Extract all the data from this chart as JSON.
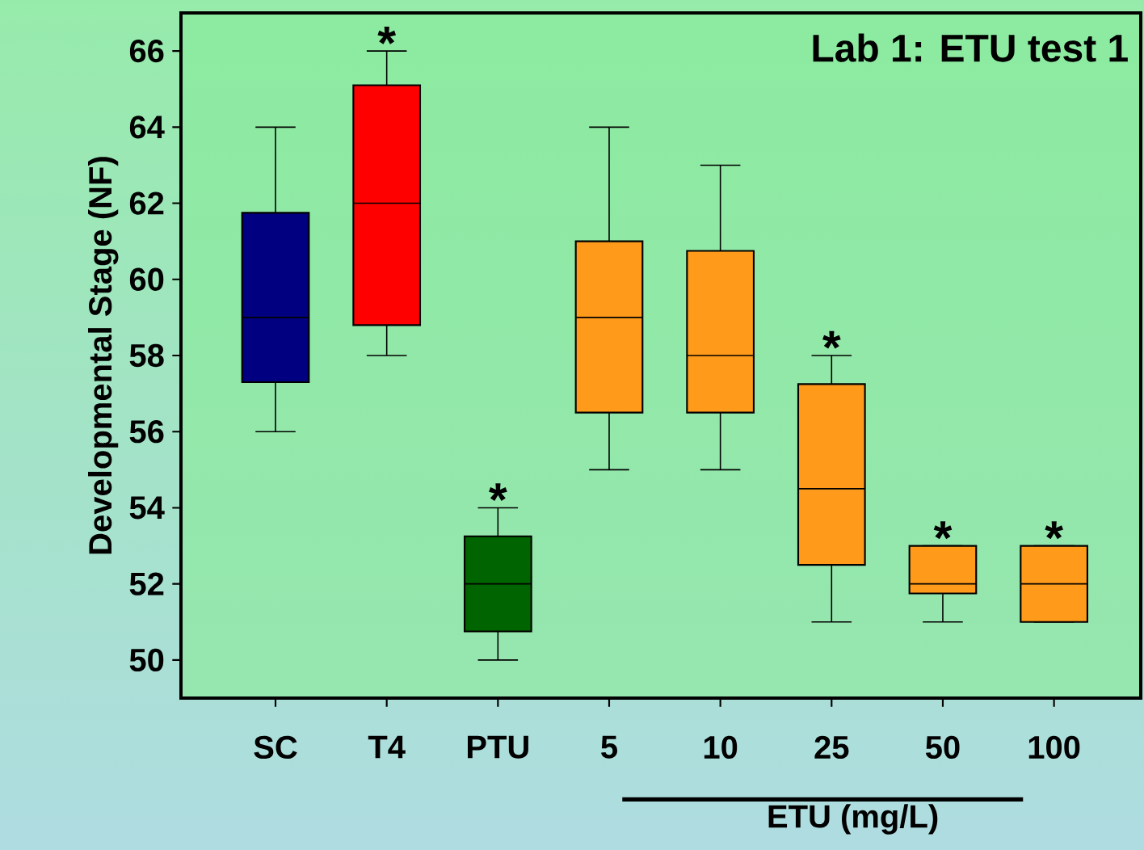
{
  "chart_data": {
    "type": "box",
    "title": "Lab 1:  ETU test 1",
    "ylabel": "Developmental Stage (NF)",
    "categories": [
      "SC",
      "T4",
      "PTU",
      "5",
      "10",
      "25",
      "50",
      "100"
    ],
    "boxes": [
      {
        "low": 56,
        "q1": 57.3,
        "median": 59,
        "q3": 61.75,
        "high": 64
      },
      {
        "low": 58,
        "q1": 58.8,
        "median": 62,
        "q3": 65.1,
        "high": 66
      },
      {
        "low": 50,
        "q1": 50.75,
        "median": 52,
        "q3": 53.25,
        "high": 54
      },
      {
        "low": 55,
        "q1": 56.5,
        "median": 59,
        "q3": 61,
        "high": 64
      },
      {
        "low": 55,
        "q1": 56.5,
        "median": 58,
        "q3": 60.75,
        "high": 63
      },
      {
        "low": 51,
        "q1": 52.5,
        "median": 54.5,
        "q3": 57.25,
        "high": 58
      },
      {
        "low": 51,
        "q1": 51.75,
        "median": 52,
        "q3": 53,
        "high": 53
      },
      {
        "low": 51,
        "q1": 51,
        "median": 52,
        "q3": 53,
        "high": 53
      }
    ],
    "colors": [
      "#000080",
      "#ff0000",
      "#006400",
      "#ff9a1a",
      "#ff9a1a",
      "#ff9a1a",
      "#ff9a1a",
      "#ff9a1a"
    ],
    "ylim": [
      49,
      67
    ],
    "yticks": [
      50,
      52,
      54,
      56,
      58,
      60,
      62,
      64,
      66
    ],
    "value_labels": [
      null,
      "*",
      "*",
      null,
      null,
      "*",
      "*",
      "*"
    ],
    "annotations": [
      "ETU (mg/L)"
    ]
  }
}
